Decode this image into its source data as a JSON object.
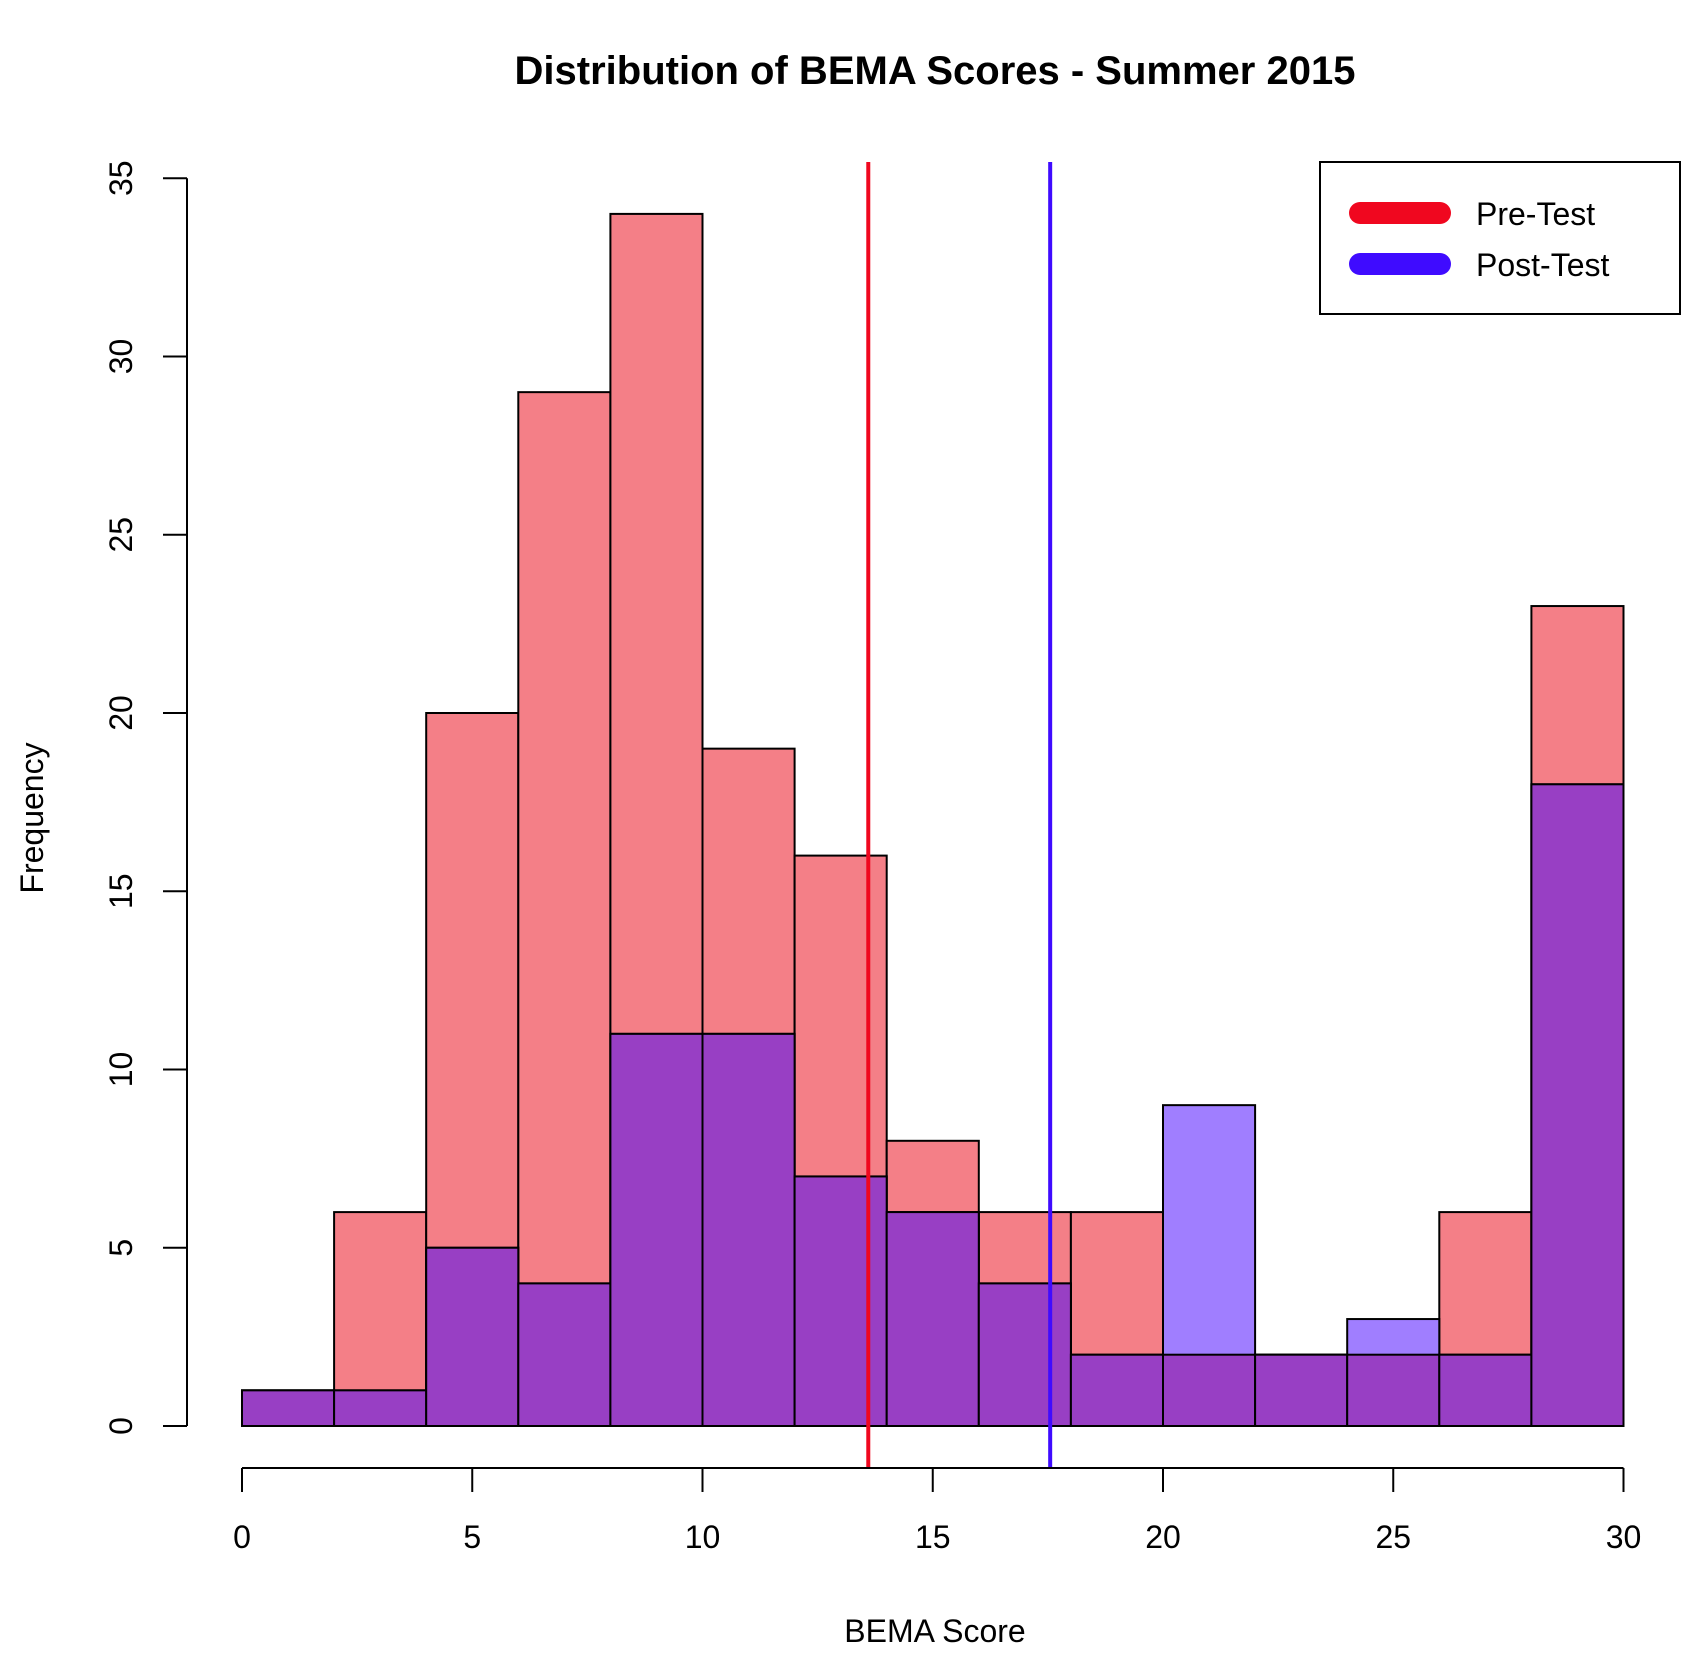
{
  "chart_data": {
    "type": "histogram",
    "title": "Distribution of BEMA Scores - Summer 2015",
    "xlabel": "BEMA Score",
    "ylabel": "Frequency",
    "xlim": [
      0,
      30
    ],
    "ylim": [
      0,
      35
    ],
    "x_ticks": [
      "0",
      "5",
      "10",
      "15",
      "20",
      "25",
      "30"
    ],
    "y_ticks": [
      "0",
      "5",
      "10",
      "15",
      "20",
      "25",
      "30",
      "35"
    ],
    "bin_edges": [
      0,
      2,
      4,
      6,
      8,
      10,
      12,
      14,
      16,
      18,
      20,
      22,
      24,
      26,
      28,
      30
    ],
    "series": [
      {
        "name": "Pre-Test",
        "values": [
          1,
          6,
          20,
          29,
          34,
          19,
          16,
          8,
          6,
          6,
          2,
          2,
          2,
          6,
          23
        ],
        "fill": "#f47f87",
        "mean_line": 13.6,
        "line_color": "#f0071f"
      },
      {
        "name": "Post-Test",
        "values": [
          1,
          1,
          5,
          4,
          11,
          11,
          7,
          6,
          4,
          2,
          9,
          2,
          3,
          2,
          18
        ],
        "fill": "#a07eff",
        "mean_line": 17.55,
        "line_color": "#3f0bff"
      }
    ],
    "overlap_fill": "#983fc4",
    "legend_position": "top-right",
    "grid": false
  }
}
